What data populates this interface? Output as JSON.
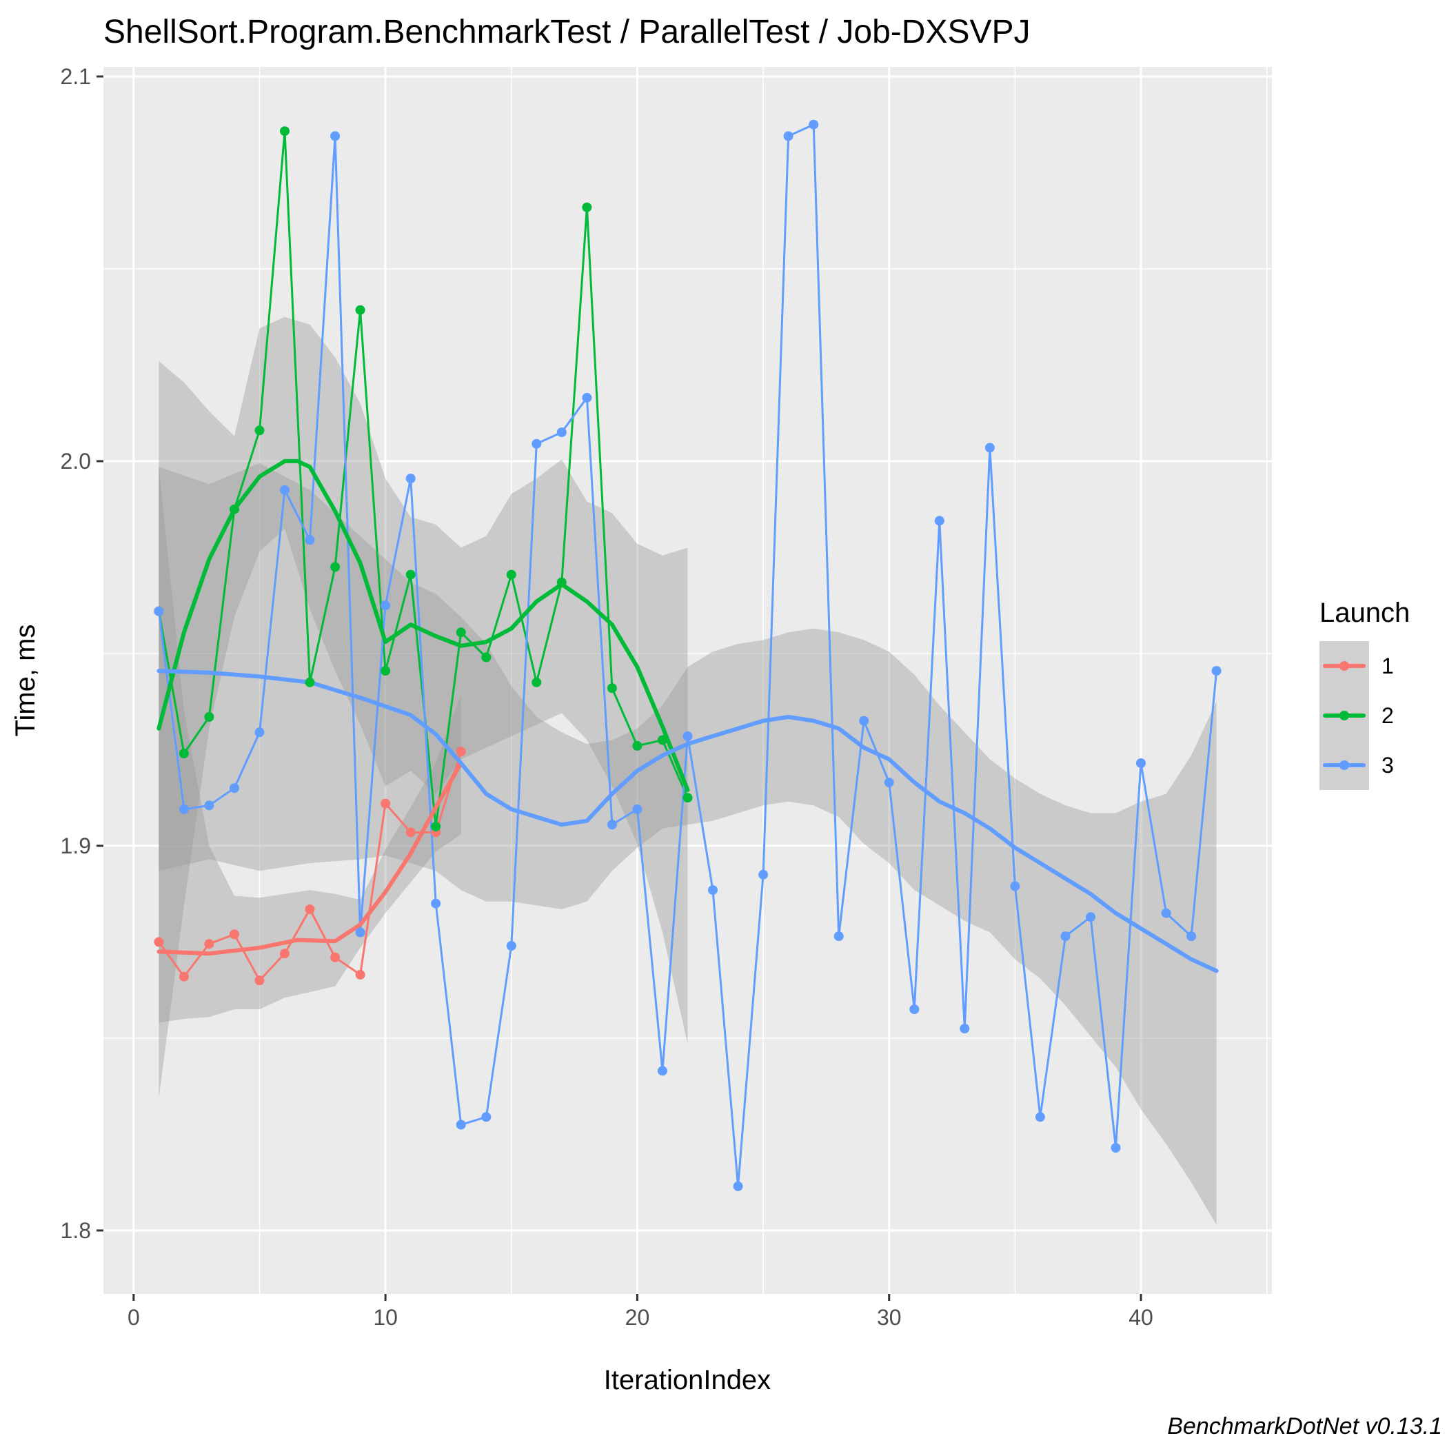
{
  "chart_data": {
    "type": "line",
    "title": "ShellSort.Program.BenchmarkTest / ParallelTest / Job-DXSVPJ",
    "xlabel": "IterationIndex",
    "ylabel": "Time, ms",
    "caption": "BenchmarkDotNet v0.13.1",
    "xlim": [
      -1.2,
      45.2
    ],
    "ylim": [
      1.7835,
      2.1025
    ],
    "x_ticks": [
      0,
      10,
      20,
      30,
      40
    ],
    "y_ticks": [
      1.8,
      1.9,
      2.0,
      2.1
    ],
    "x_tick_labels": [
      "0",
      "10",
      "20",
      "30",
      "40"
    ],
    "y_tick_labels": [
      "1.8",
      "1.9",
      "2.0",
      "2.1"
    ],
    "grid": true,
    "legend": {
      "title": "Launch",
      "position": "right"
    },
    "series": [
      {
        "name": "1",
        "color": "#F8766D",
        "x": [
          1,
          2,
          3,
          4,
          5,
          6,
          7,
          8,
          9,
          10,
          11,
          12,
          13
        ],
        "values": [
          1.875,
          1.866,
          1.8745,
          1.877,
          1.865,
          1.872,
          1.8835,
          1.871,
          1.8665,
          1.911,
          1.9035,
          1.9035,
          1.9245
        ],
        "smooth": [
          [
            1,
            1.8725
          ],
          [
            3,
            1.872
          ],
          [
            5,
            1.8735
          ],
          [
            6.5,
            1.8755
          ],
          [
            8,
            1.8752
          ],
          [
            9,
            1.8795
          ],
          [
            10,
            1.888
          ],
          [
            11,
            1.898
          ],
          [
            12,
            1.91
          ],
          [
            13,
            1.9215
          ]
        ],
        "band_upper": [
          [
            1,
            1.9985
          ],
          [
            2,
            1.935
          ],
          [
            3,
            1.9
          ],
          [
            4,
            1.887
          ],
          [
            5,
            1.8865
          ],
          [
            7,
            1.8885
          ],
          [
            8,
            1.8875
          ],
          [
            9,
            1.886
          ],
          [
            10,
            1.899
          ],
          [
            11,
            1.91
          ],
          [
            12,
            1.9215
          ],
          [
            13,
            1.9395
          ]
        ],
        "band_lower": [
          [
            1,
            1.854
          ],
          [
            2,
            1.855
          ],
          [
            3,
            1.8555
          ],
          [
            4,
            1.8575
          ],
          [
            5,
            1.8575
          ],
          [
            6,
            1.8605
          ],
          [
            7,
            1.862
          ],
          [
            8,
            1.8635
          ],
          [
            9,
            1.8735
          ],
          [
            10,
            1.8825
          ],
          [
            11,
            1.8905
          ],
          [
            12,
            1.8985
          ],
          [
            13,
            1.903
          ]
        ]
      },
      {
        "name": "2",
        "color": "#00BA38",
        "x": [
          1,
          2,
          3,
          4,
          5,
          6,
          7,
          8,
          9,
          10,
          11,
          12,
          13,
          14,
          15,
          16,
          17,
          18,
          19,
          20,
          21,
          22
        ],
        "values": [
          1.961,
          1.924,
          1.9335,
          1.9875,
          2.008,
          2.0858,
          1.9425,
          1.9725,
          2.0393,
          1.9455,
          1.9705,
          1.905,
          1.9555,
          1.949,
          1.9705,
          1.9425,
          1.9685,
          2.066,
          1.941,
          1.926,
          1.9275,
          1.9125
        ],
        "smooth": [
          [
            1,
            1.9305
          ],
          [
            2,
            1.9555
          ],
          [
            3,
            1.9745
          ],
          [
            4,
            1.9875
          ],
          [
            5,
            1.996
          ],
          [
            6,
            2.0
          ],
          [
            6.5,
            2.0
          ],
          [
            7,
            1.9985
          ],
          [
            8,
            1.987
          ],
          [
            9,
            1.9735
          ],
          [
            10,
            1.953
          ],
          [
            11,
            1.9575
          ],
          [
            12,
            1.9545
          ],
          [
            13,
            1.952
          ],
          [
            14,
            1.953
          ],
          [
            15,
            1.9565
          ],
          [
            16,
            1.9635
          ],
          [
            17,
            1.968
          ],
          [
            18,
            1.9635
          ],
          [
            19,
            1.9575
          ],
          [
            20,
            1.9465
          ],
          [
            21,
            1.931
          ],
          [
            22,
            1.9145
          ]
        ],
        "band_upper": [
          [
            1,
            2.026
          ],
          [
            2,
            2.0205
          ],
          [
            3,
            2.013
          ],
          [
            4,
            2.0065
          ],
          [
            5,
            2.0345
          ],
          [
            6,
            2.0375
          ],
          [
            7,
            2.0355
          ],
          [
            8,
            2.027
          ],
          [
            9,
            2.015
          ],
          [
            10,
            1.9955
          ],
          [
            11,
            1.9855
          ],
          [
            12,
            1.9835
          ],
          [
            13,
            1.9775
          ],
          [
            14,
            1.9805
          ],
          [
            15,
            1.9915
          ],
          [
            16,
            1.9955
          ],
          [
            17,
            2.0005
          ],
          [
            18,
            1.9895
          ],
          [
            19,
            1.9865
          ],
          [
            20,
            1.9785
          ],
          [
            21,
            1.9755
          ],
          [
            22,
            1.9775
          ]
        ],
        "band_lower": [
          [
            1,
            1.8345
          ],
          [
            2,
            1.8845
          ],
          [
            3,
            1.9305
          ],
          [
            4,
            1.9595
          ],
          [
            5,
            1.9765
          ],
          [
            6,
            1.9825
          ],
          [
            7,
            1.9615
          ],
          [
            8,
            1.9455
          ],
          [
            9,
            1.9315
          ],
          [
            10,
            1.9155
          ],
          [
            11,
            1.9195
          ],
          [
            12,
            1.9135
          ],
          [
            13,
            1.9225
          ],
          [
            14,
            1.9255
          ],
          [
            15,
            1.9285
          ],
          [
            16,
            1.9315
          ],
          [
            17,
            1.9345
          ],
          [
            18,
            1.9275
          ],
          [
            19,
            1.9155
          ],
          [
            20,
            1.9005
          ],
          [
            21,
            1.8775
          ],
          [
            22,
            1.8485
          ]
        ]
      },
      {
        "name": "3",
        "color": "#619CFF",
        "x": [
          1,
          2,
          3,
          4,
          5,
          6,
          7,
          8,
          9,
          10,
          11,
          12,
          13,
          14,
          15,
          16,
          17,
          18,
          19,
          20,
          21,
          22,
          23,
          24,
          25,
          26,
          27,
          28,
          29,
          30,
          31,
          32,
          33,
          34,
          35,
          36,
          37,
          38,
          39,
          40,
          41,
          42,
          43
        ],
        "values": [
          1.961,
          1.9095,
          1.9105,
          1.915,
          1.9295,
          1.9925,
          1.9795,
          2.0845,
          1.8775,
          1.9625,
          1.9955,
          1.885,
          1.8275,
          1.8295,
          1.874,
          2.0045,
          2.0075,
          2.0165,
          1.9055,
          1.9095,
          1.8415,
          1.9285,
          1.8885,
          1.8115,
          1.8925,
          2.0845,
          2.0875,
          1.8765,
          1.9325,
          1.9165,
          1.8575,
          1.9845,
          1.8525,
          2.0035,
          1.8895,
          1.8295,
          1.8765,
          1.8815,
          1.8215,
          1.9215,
          1.8825,
          1.8765,
          1.9455
        ],
        "smooth": [
          [
            1,
            1.9455
          ],
          [
            3,
            1.945
          ],
          [
            5,
            1.944
          ],
          [
            7,
            1.9425
          ],
          [
            9,
            1.9385
          ],
          [
            11,
            1.934
          ],
          [
            12,
            1.929
          ],
          [
            13,
            1.9215
          ],
          [
            14,
            1.9135
          ],
          [
            15,
            1.9095
          ],
          [
            16,
            1.9075
          ],
          [
            17,
            1.9055
          ],
          [
            18,
            1.9065
          ],
          [
            19,
            1.9135
          ],
          [
            20,
            1.9195
          ],
          [
            21,
            1.9235
          ],
          [
            22,
            1.9265
          ],
          [
            23,
            1.9285
          ],
          [
            24,
            1.9305
          ],
          [
            25,
            1.9325
          ],
          [
            26,
            1.9335
          ],
          [
            27,
            1.9325
          ],
          [
            28,
            1.9305
          ],
          [
            29,
            1.9255
          ],
          [
            30,
            1.9225
          ],
          [
            31,
            1.9165
          ],
          [
            32,
            1.9115
          ],
          [
            33,
            1.9085
          ],
          [
            34,
            1.9045
          ],
          [
            35,
            1.8995
          ],
          [
            36,
            1.8955
          ],
          [
            37,
            1.8915
          ],
          [
            38,
            1.8875
          ],
          [
            39,
            1.8825
          ],
          [
            40,
            1.8785
          ],
          [
            41,
            1.8745
          ],
          [
            42,
            1.8705
          ],
          [
            43,
            1.8675
          ]
        ],
        "band_upper": [
          [
            1,
            1.9985
          ],
          [
            3,
            1.994
          ],
          [
            5,
            1.9995
          ],
          [
            7,
            1.9925
          ],
          [
            9,
            1.9805
          ],
          [
            10,
            1.9745
          ],
          [
            11,
            1.9685
          ],
          [
            12,
            1.9655
          ],
          [
            13,
            1.9595
          ],
          [
            14,
            1.9525
          ],
          [
            15,
            1.9415
          ],
          [
            16,
            1.9335
          ],
          [
            17,
            1.9295
          ],
          [
            18,
            1.9265
          ],
          [
            19,
            1.9275
          ],
          [
            20,
            1.9305
          ],
          [
            21,
            1.9365
          ],
          [
            22,
            1.9465
          ],
          [
            23,
            1.9505
          ],
          [
            24,
            1.9525
          ],
          [
            25,
            1.9535
          ],
          [
            26,
            1.9555
          ],
          [
            27,
            1.9565
          ],
          [
            28,
            1.9555
          ],
          [
            29,
            1.9535
          ],
          [
            30,
            1.9505
          ],
          [
            31,
            1.9445
          ],
          [
            32,
            1.9365
          ],
          [
            33,
            1.9295
          ],
          [
            34,
            1.9225
          ],
          [
            35,
            1.9175
          ],
          [
            36,
            1.9135
          ],
          [
            37,
            1.9105
          ],
          [
            38,
            1.9085
          ],
          [
            39,
            1.9085
          ],
          [
            40,
            1.9115
          ],
          [
            41,
            1.9135
          ],
          [
            42,
            1.9235
          ],
          [
            43,
            1.9375
          ]
        ],
        "band_lower": [
          [
            1,
            1.8935
          ],
          [
            3,
            1.8965
          ],
          [
            5,
            1.8935
          ],
          [
            7,
            1.8955
          ],
          [
            9,
            1.8965
          ],
          [
            10,
            1.8975
          ],
          [
            11,
            1.8955
          ],
          [
            12,
            1.8935
          ],
          [
            13,
            1.8885
          ],
          [
            14,
            1.8855
          ],
          [
            15,
            1.8855
          ],
          [
            16,
            1.8845
          ],
          [
            17,
            1.8835
          ],
          [
            18,
            1.8855
          ],
          [
            19,
            1.8935
          ],
          [
            20,
            1.8995
          ],
          [
            21,
            1.9045
          ],
          [
            22,
            1.9055
          ],
          [
            23,
            1.9065
          ],
          [
            24,
            1.9085
          ],
          [
            25,
            1.9105
          ],
          [
            26,
            1.9115
          ],
          [
            27,
            1.9105
          ],
          [
            28,
            1.9075
          ],
          [
            29,
            1.9005
          ],
          [
            30,
            1.8955
          ],
          [
            31,
            1.8885
          ],
          [
            32,
            1.8845
          ],
          [
            33,
            1.8805
          ],
          [
            34,
            1.8775
          ],
          [
            35,
            1.8705
          ],
          [
            36,
            1.8655
          ],
          [
            37,
            1.8585
          ],
          [
            38,
            1.8505
          ],
          [
            39,
            1.8425
          ],
          [
            40,
            1.8315
          ],
          [
            41,
            1.8225
          ],
          [
            42,
            1.8125
          ],
          [
            43,
            1.8015
          ]
        ]
      }
    ]
  }
}
